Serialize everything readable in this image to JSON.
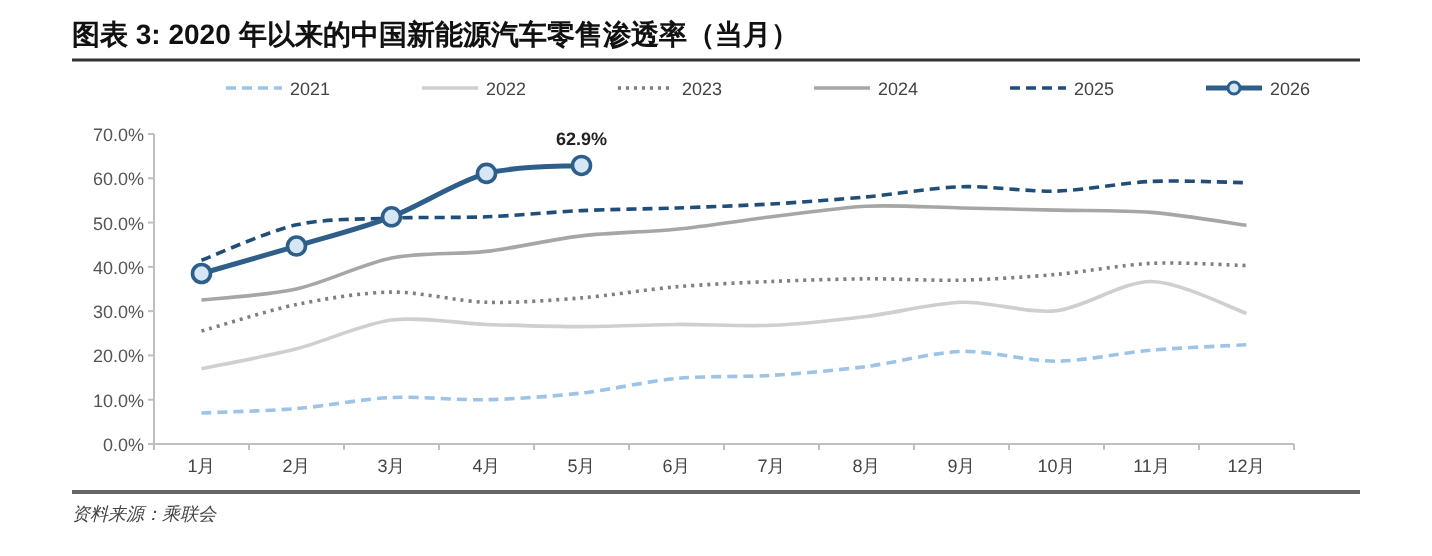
{
  "chart_data": {
    "type": "line",
    "title": "图表 3: 2020 年以来的中国新能源汽车零售渗透率（当月）",
    "categories": [
      "1月",
      "2月",
      "3月",
      "4月",
      "5月",
      "6月",
      "7月",
      "8月",
      "9月",
      "10月",
      "11月",
      "12月"
    ],
    "series": [
      {
        "name": "2021",
        "color": "#9dc3e6",
        "line_style": "dashed",
        "marker": "none",
        "values": [
          7,
          8,
          10.5,
          10,
          11.5,
          14.8,
          15.5,
          17.5,
          20.9,
          18.7,
          21.2,
          22.4
        ]
      },
      {
        "name": "2022",
        "color": "#cfcfcf",
        "line_style": "solid",
        "marker": "none",
        "values": [
          17,
          21.5,
          28,
          27,
          26.5,
          27,
          26.8,
          28.8,
          32,
          30.1,
          36.7,
          29.5
        ]
      },
      {
        "name": "2023",
        "color": "#7f7f7f",
        "line_style": "dotted",
        "marker": "none",
        "values": [
          25.5,
          31.5,
          34.3,
          32,
          33,
          35.5,
          36.7,
          37.3,
          37,
          38.3,
          40.8,
          40.3
        ]
      },
      {
        "name": "2024",
        "color": "#a6a6a6",
        "line_style": "solid",
        "marker": "none",
        "values": [
          32.5,
          35,
          42,
          43.5,
          47,
          48.5,
          51.3,
          53.7,
          53.3,
          52.8,
          52.3,
          49.4
        ]
      },
      {
        "name": "2025",
        "color": "#1f4e79",
        "line_style": "dashed",
        "marker": "none",
        "values": [
          41.5,
          49.5,
          51,
          51.3,
          52.7,
          53.3,
          54.2,
          55.8,
          58.1,
          57.1,
          59.3,
          59
        ]
      },
      {
        "name": "2026",
        "color": "#2e5f8a",
        "line_style": "solid",
        "marker": "circle",
        "values": [
          38.5,
          44.7,
          51.3,
          61.1,
          62.9,
          null,
          null,
          null,
          null,
          null,
          null,
          null
        ],
        "value_labels": [
          null,
          null,
          null,
          null,
          "62.9%",
          null,
          null,
          null,
          null,
          null,
          null,
          null
        ]
      }
    ],
    "ylim": [
      0,
      70
    ],
    "yticks": [
      {
        "value": 0,
        "label": "0.0%"
      },
      {
        "value": 10,
        "label": "10.0%"
      },
      {
        "value": 20,
        "label": "20.0%"
      },
      {
        "value": 30,
        "label": "30.0%"
      },
      {
        "value": 40,
        "label": "40.0%"
      },
      {
        "value": 50,
        "label": "50.0%"
      },
      {
        "value": 60,
        "label": "60.0%"
      },
      {
        "value": 70,
        "label": "70.0%"
      }
    ],
    "legend": "top",
    "grid": false,
    "annotations": [
      "资料来源：乘联会"
    ]
  }
}
